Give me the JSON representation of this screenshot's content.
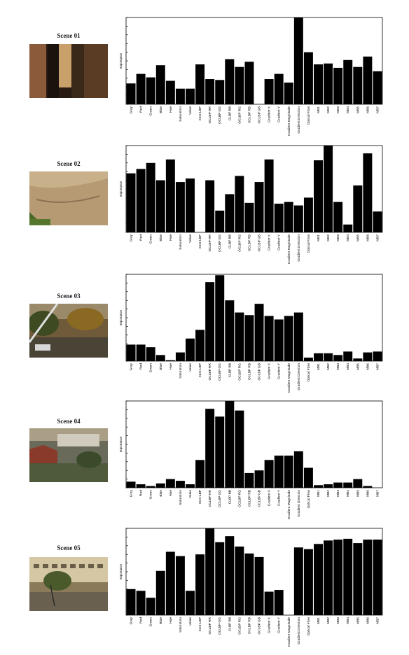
{
  "categories": [
    "Gray",
    "Red",
    "Green",
    "Blue",
    "Hue",
    "Saturation",
    "Value",
    "XCS-LBP",
    "OCLBP RR",
    "OCLBP GG",
    "CLBP BB",
    "OCLBP RG",
    "OCLBP RB",
    "OCLBP GB",
    "Gradient X",
    "Gradient Y",
    "Gradient Magnitude",
    "Gradient Direction",
    "Optical Flow",
    "MB1",
    "MB2",
    "MB3",
    "MB4",
    "MB5",
    "MB6",
    "MB7"
  ],
  "ylabel": "Importance",
  "colors": {
    "bar": "#000000",
    "axis": "#000000",
    "background": "#ffffff"
  },
  "scenes": [
    {
      "title": "Scene 01",
      "thumbnail": "dark-indoor-door-icon"
    },
    {
      "title": "Scene 02",
      "thumbnail": "dirt-field-icon"
    },
    {
      "title": "Scene 03",
      "thumbnail": "street-trees-cars-icon"
    },
    {
      "title": "Scene 04",
      "thumbnail": "town-buildings-icon"
    },
    {
      "title": "Scene 05",
      "thumbnail": "building-trees-street-icon"
    }
  ],
  "chart_data": [
    {
      "type": "bar",
      "title": "Scene 01",
      "ylabel": "Importance",
      "ylim": [
        0,
        1
      ],
      "categories": [
        "Gray",
        "Red",
        "Green",
        "Blue",
        "Hue",
        "Saturation",
        "Value",
        "XCS-LBP",
        "OCLBP RR",
        "OCLBP GG",
        "CLBP BB",
        "OCLBP RG",
        "OCLBP RB",
        "OCLBP GB",
        "Gradient X",
        "Gradient Y",
        "Gradient Magnitude",
        "Gradient Direction",
        "Optical Flow",
        "MB1",
        "MB2",
        "MB3",
        "MB4",
        "MB5",
        "MB6",
        "MB7"
      ],
      "values": [
        0.24,
        0.35,
        0.31,
        0.45,
        0.27,
        0.18,
        0.18,
        0.46,
        0.29,
        0.28,
        0.52,
        0.43,
        0.49,
        0.0,
        0.29,
        0.35,
        0.25,
        1.0,
        0.6,
        0.46,
        0.47,
        0.42,
        0.51,
        0.43,
        0.55,
        0.38
      ]
    },
    {
      "type": "bar",
      "title": "Scene 02",
      "ylabel": "Importance",
      "ylim": [
        0,
        1
      ],
      "categories": [
        "Gray",
        "Red",
        "Green",
        "Blue",
        "Hue",
        "Saturation",
        "Value",
        "XCS-LBP",
        "OCLBP RR",
        "OCLBP GG",
        "CLBP BB",
        "OCLBP RG",
        "OCLBP RB",
        "OCLBP GB",
        "Gradient X",
        "Gradient Y",
        "Gradient Magnitude",
        "Gradient Direction",
        "Optical Flow",
        "MB1",
        "MB2",
        "MB3",
        "MB4",
        "MB5",
        "MB6",
        "MB7"
      ],
      "values": [
        0.68,
        0.73,
        0.8,
        0.6,
        0.84,
        0.58,
        0.62,
        0.0,
        0.6,
        0.25,
        0.44,
        0.65,
        0.34,
        0.58,
        0.84,
        0.33,
        0.35,
        0.31,
        0.4,
        0.83,
        1.0,
        0.35,
        0.09,
        0.54,
        0.91,
        0.24
      ]
    },
    {
      "type": "bar",
      "title": "Scene 03",
      "ylabel": "Importance",
      "ylim": [
        0,
        1
      ],
      "categories": [
        "Gray",
        "Red",
        "Green",
        "Blue",
        "Hue",
        "Saturation",
        "Value",
        "XCS-LBP",
        "OCLBP RR",
        "OCLBP GG",
        "CLBP BB",
        "OCLBP RG",
        "OCLBP RB",
        "OCLBP GB",
        "Gradient X",
        "Gradient Y",
        "Gradient Magnitude",
        "Gradient Direction",
        "Optical Flow",
        "MB1",
        "MB2",
        "MB3",
        "MB4",
        "MB5",
        "MB6",
        "MB7"
      ],
      "values": [
        0.19,
        0.19,
        0.16,
        0.07,
        0.01,
        0.1,
        0.26,
        0.36,
        0.91,
        0.99,
        0.7,
        0.56,
        0.53,
        0.66,
        0.52,
        0.48,
        0.52,
        0.56,
        0.04,
        0.09,
        0.09,
        0.07,
        0.11,
        0.03,
        0.1,
        0.11
      ]
    },
    {
      "type": "bar",
      "title": "Scene 04",
      "ylabel": "Importance",
      "ylim": [
        0,
        1
      ],
      "categories": [
        "Gray",
        "Red",
        "Green",
        "Blue",
        "Hue",
        "Saturation",
        "Value",
        "XCS-LBP",
        "OCLBP RR",
        "OCLBP GG",
        "CLBP BB",
        "OCLBP RG",
        "OCLBP RB",
        "OCLBP GB",
        "Gradient X",
        "Gradient Y",
        "Gradient Magnitude",
        "Gradient Direction",
        "Optical Flow",
        "MB1",
        "MB2",
        "MB3",
        "MB4",
        "MB5",
        "MB6",
        "MB7"
      ],
      "values": [
        0.07,
        0.04,
        0.02,
        0.05,
        0.1,
        0.08,
        0.04,
        0.32,
        0.91,
        0.82,
        1.0,
        0.89,
        0.17,
        0.2,
        0.32,
        0.37,
        0.37,
        0.42,
        0.23,
        0.03,
        0.04,
        0.06,
        0.06,
        0.1,
        0.02,
        0.0
      ]
    },
    {
      "type": "bar",
      "title": "Scene 05",
      "ylabel": "Importance",
      "ylim": [
        0,
        1
      ],
      "categories": [
        "Gray",
        "Red",
        "Green",
        "Blue",
        "Hue",
        "Saturation",
        "Value",
        "XCS-LBP",
        "OCLBP RR",
        "OCLBP GG",
        "CLBP BB",
        "OCLBP RG",
        "OCLBP RB",
        "OCLBP GB",
        "Gradient X",
        "Gradient Y",
        "Gradient Magnitude",
        "Gradient Direction",
        "Optical Flow",
        "MB1",
        "MB2",
        "MB3",
        "MB4",
        "MB5",
        "MB6",
        "MB7"
      ],
      "values": [
        0.3,
        0.28,
        0.2,
        0.51,
        0.73,
        0.68,
        0.28,
        0.7,
        1.0,
        0.84,
        0.91,
        0.79,
        0.71,
        0.67,
        0.27,
        0.29,
        0.0,
        0.78,
        0.76,
        0.82,
        0.86,
        0.87,
        0.88,
        0.83,
        0.87,
        0.87
      ]
    }
  ]
}
